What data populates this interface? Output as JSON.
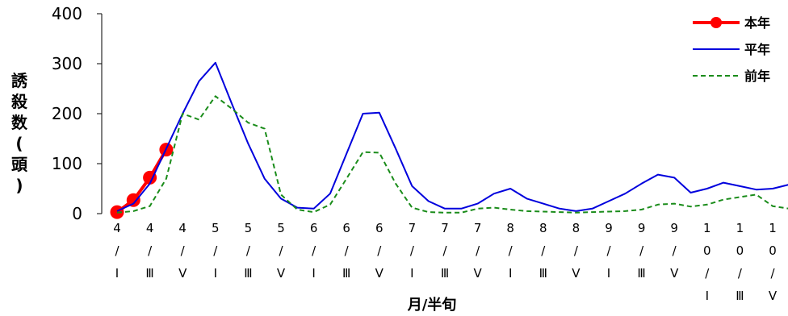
{
  "chart_data": {
    "type": "line",
    "ylabel": "誘殺数(頭)",
    "xlabel": "月/半旬",
    "ylim": [
      0,
      400
    ],
    "yticks": [
      0,
      100,
      200,
      300,
      400
    ],
    "grid": false,
    "legend_position": "top-right",
    "categories": [
      [
        "4",
        "/",
        "I"
      ],
      [
        "4",
        "/",
        "Ⅲ"
      ],
      [
        "4",
        "/",
        "V"
      ],
      [
        "5",
        "/",
        "I"
      ],
      [
        "5",
        "/",
        "Ⅲ"
      ],
      [
        "5",
        "/",
        "V"
      ],
      [
        "6",
        "/",
        "I"
      ],
      [
        "6",
        "/",
        "Ⅲ"
      ],
      [
        "6",
        "/",
        "V"
      ],
      [
        "7",
        "/",
        "I"
      ],
      [
        "7",
        "/",
        "Ⅲ"
      ],
      [
        "7",
        "/",
        "V"
      ],
      [
        "8",
        "/",
        "I"
      ],
      [
        "8",
        "/",
        "Ⅲ"
      ],
      [
        "8",
        "/",
        "V"
      ],
      [
        "9",
        "/",
        "I"
      ],
      [
        "9",
        "/",
        "Ⅲ"
      ],
      [
        "9",
        "/",
        "V"
      ],
      [
        "1",
        "0",
        "/",
        "I"
      ],
      [
        "1",
        "0",
        "/",
        "Ⅲ"
      ],
      [
        "1",
        "0",
        "/",
        "V"
      ]
    ],
    "series": [
      {
        "name": "本年",
        "color": "#ff0000",
        "style": "solid-markers",
        "x": [
          0,
          0.5,
          1,
          1.5
        ],
        "y": [
          3,
          27,
          72,
          128
        ]
      },
      {
        "name": "平年",
        "color": "#0000dd",
        "style": "solid",
        "x": [
          0,
          0.5,
          1,
          1.5,
          2,
          2.5,
          3,
          3.5,
          4,
          4.5,
          5,
          5.5,
          6,
          6.5,
          7,
          7.5,
          8,
          8.5,
          9,
          9.5,
          10,
          10.5,
          11,
          11.5,
          12,
          12.5,
          13,
          13.5,
          14,
          14.5,
          15,
          15.5,
          16,
          16.5,
          17,
          17.5,
          18,
          18.5,
          19,
          19.5,
          20,
          20.5
        ],
        "y": [
          5,
          20,
          60,
          130,
          200,
          265,
          302,
          220,
          140,
          70,
          30,
          12,
          10,
          40,
          120,
          200,
          202,
          130,
          55,
          25,
          10,
          10,
          20,
          40,
          50,
          30,
          20,
          10,
          5,
          10,
          25,
          40,
          60,
          78,
          72,
          42,
          50,
          62,
          55,
          48,
          50,
          58
        ]
      },
      {
        "name": "前年",
        "color": "#1a8c1a",
        "style": "dashed",
        "x": [
          0,
          0.5,
          1,
          1.5,
          2,
          2.5,
          3,
          3.5,
          4,
          4.5,
          5,
          5.5,
          6,
          6.5,
          7,
          7.5,
          8,
          8.5,
          9,
          9.5,
          10,
          10.5,
          11,
          11.5,
          12,
          12.5,
          13,
          13.5,
          14,
          14.5,
          15,
          15.5,
          16,
          16.5,
          17,
          17.5,
          18,
          18.5,
          19,
          19.5,
          20,
          20.5
        ],
        "y": [
          2,
          5,
          15,
          70,
          200,
          188,
          235,
          210,
          182,
          170,
          38,
          8,
          3,
          18,
          70,
          123,
          122,
          60,
          12,
          3,
          2,
          2,
          10,
          12,
          8,
          5,
          4,
          3,
          2,
          3,
          4,
          5,
          8,
          18,
          20,
          14,
          18,
          28,
          33,
          38,
          15,
          10
        ]
      }
    ]
  }
}
